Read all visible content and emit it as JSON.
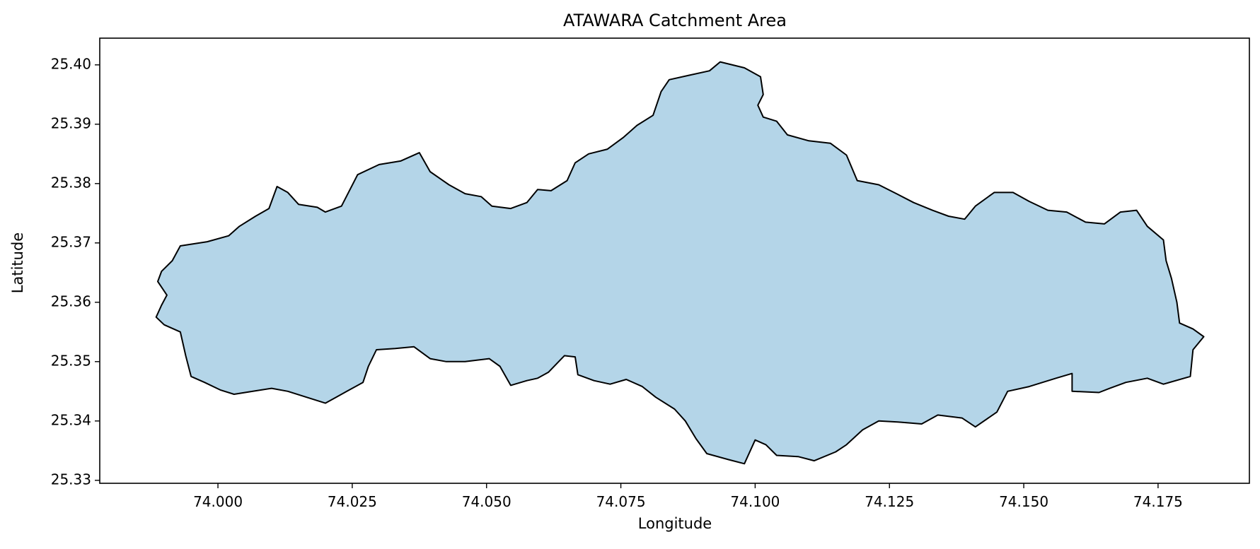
{
  "map": {
    "title": "ATAWARA Catchment Area",
    "xlabel": "Longitude",
    "ylabel": "Latitude",
    "fill_color": "#b4d5e8",
    "edge_color": "#000000",
    "xlim": [
      73.978,
      74.192
    ],
    "ylim": [
      25.3295,
      25.4045
    ],
    "x_ticks": [
      {
        "value": 74.0,
        "label": "74.000"
      },
      {
        "value": 74.025,
        "label": "74.025"
      },
      {
        "value": 74.05,
        "label": "74.050"
      },
      {
        "value": 74.075,
        "label": "74.075"
      },
      {
        "value": 74.1,
        "label": "74.100"
      },
      {
        "value": 74.125,
        "label": "74.125"
      },
      {
        "value": 74.15,
        "label": "74.150"
      },
      {
        "value": 74.175,
        "label": "74.175"
      }
    ],
    "y_ticks": [
      {
        "value": 25.33,
        "label": "25.33"
      },
      {
        "value": 25.34,
        "label": "25.34"
      },
      {
        "value": 25.35,
        "label": "25.35"
      },
      {
        "value": 25.36,
        "label": "25.36"
      },
      {
        "value": 25.37,
        "label": "25.37"
      },
      {
        "value": 25.38,
        "label": "25.38"
      },
      {
        "value": 25.39,
        "label": "25.39"
      },
      {
        "value": 25.4,
        "label": "25.40"
      }
    ],
    "boundary": [
      [
        73.9885,
        25.3575
      ],
      [
        73.9895,
        25.3595
      ],
      [
        73.9905,
        25.3612
      ],
      [
        73.9888,
        25.3635
      ],
      [
        73.9895,
        25.3652
      ],
      [
        73.9915,
        25.367
      ],
      [
        73.993,
        25.3695
      ],
      [
        73.998,
        25.3702
      ],
      [
        74.002,
        25.3712
      ],
      [
        74.004,
        25.3728
      ],
      [
        74.007,
        25.3745
      ],
      [
        74.0095,
        25.3758
      ],
      [
        74.011,
        25.3795
      ],
      [
        74.013,
        25.3785
      ],
      [
        74.015,
        25.3765
      ],
      [
        74.0185,
        25.376
      ],
      [
        74.02,
        25.3752
      ],
      [
        74.023,
        25.3762
      ],
      [
        74.026,
        25.3815
      ],
      [
        74.03,
        25.3832
      ],
      [
        74.034,
        25.3838
      ],
      [
        74.0375,
        25.3852
      ],
      [
        74.0395,
        25.382
      ],
      [
        74.043,
        25.3798
      ],
      [
        74.046,
        25.3783
      ],
      [
        74.049,
        25.3778
      ],
      [
        74.051,
        25.3762
      ],
      [
        74.0545,
        25.3758
      ],
      [
        74.0575,
        25.3768
      ],
      [
        74.0595,
        25.379
      ],
      [
        74.062,
        25.3788
      ],
      [
        74.065,
        25.3805
      ],
      [
        74.0665,
        25.3835
      ],
      [
        74.069,
        25.385
      ],
      [
        74.0725,
        25.3858
      ],
      [
        74.0755,
        25.3878
      ],
      [
        74.078,
        25.3898
      ],
      [
        74.081,
        25.3915
      ],
      [
        74.0825,
        25.3955
      ],
      [
        74.084,
        25.3975
      ],
      [
        74.0875,
        25.3982
      ],
      [
        74.0915,
        25.399
      ],
      [
        74.0935,
        25.4005
      ],
      [
        74.098,
        25.3995
      ],
      [
        74.101,
        25.398
      ],
      [
        74.1015,
        25.395
      ],
      [
        74.1005,
        25.3932
      ],
      [
        74.1015,
        25.3912
      ],
      [
        74.104,
        25.3905
      ],
      [
        74.106,
        25.3882
      ],
      [
        74.11,
        25.3872
      ],
      [
        74.114,
        25.3868
      ],
      [
        74.117,
        25.3848
      ],
      [
        74.119,
        25.3805
      ],
      [
        74.123,
        25.3798
      ],
      [
        74.1265,
        25.3782
      ],
      [
        74.1295,
        25.3768
      ],
      [
        74.133,
        25.3755
      ],
      [
        74.136,
        25.3745
      ],
      [
        74.139,
        25.374
      ],
      [
        74.141,
        25.3762
      ],
      [
        74.1445,
        25.3785
      ],
      [
        74.148,
        25.3785
      ],
      [
        74.151,
        25.377
      ],
      [
        74.1545,
        25.3755
      ],
      [
        74.158,
        25.3752
      ],
      [
        74.1615,
        25.3735
      ],
      [
        74.165,
        25.3732
      ],
      [
        74.168,
        25.3752
      ],
      [
        74.171,
        25.3755
      ],
      [
        74.173,
        25.3728
      ],
      [
        74.176,
        25.3705
      ],
      [
        74.1765,
        25.367
      ],
      [
        74.1775,
        25.364
      ],
      [
        74.1785,
        25.36
      ],
      [
        74.179,
        25.3565
      ],
      [
        74.1815,
        25.3555
      ],
      [
        74.1835,
        25.3542
      ],
      [
        74.1815,
        25.352
      ],
      [
        74.181,
        25.3475
      ],
      [
        74.176,
        25.3462
      ],
      [
        74.173,
        25.3472
      ],
      [
        74.169,
        25.3465
      ],
      [
        74.166,
        25.3455
      ],
      [
        74.164,
        25.3448
      ],
      [
        74.159,
        25.345
      ],
      [
        74.159,
        25.348
      ],
      [
        74.156,
        25.3472
      ],
      [
        74.151,
        25.3458
      ],
      [
        74.147,
        25.345
      ],
      [
        74.145,
        25.3415
      ],
      [
        74.141,
        25.339
      ],
      [
        74.1385,
        25.3405
      ],
      [
        74.134,
        25.341
      ],
      [
        74.131,
        25.3395
      ],
      [
        74.127,
        25.3398
      ],
      [
        74.123,
        25.34
      ],
      [
        74.12,
        25.3385
      ],
      [
        74.117,
        25.336
      ],
      [
        74.115,
        25.3348
      ],
      [
        74.111,
        25.3333
      ],
      [
        74.108,
        25.334
      ],
      [
        74.104,
        25.3342
      ],
      [
        74.102,
        25.336
      ],
      [
        74.1,
        25.3368
      ],
      [
        74.098,
        25.3328
      ],
      [
        74.095,
        25.3335
      ],
      [
        74.091,
        25.3345
      ],
      [
        74.089,
        25.337
      ],
      [
        74.087,
        25.34
      ],
      [
        74.085,
        25.342
      ],
      [
        74.0815,
        25.344
      ],
      [
        74.079,
        25.3458
      ],
      [
        74.076,
        25.347
      ],
      [
        74.073,
        25.3462
      ],
      [
        74.07,
        25.3468
      ],
      [
        74.067,
        25.3478
      ],
      [
        74.0665,
        25.3508
      ],
      [
        74.0645,
        25.351
      ],
      [
        74.0615,
        25.3482
      ],
      [
        74.0595,
        25.3472
      ],
      [
        74.0575,
        25.3468
      ],
      [
        74.0545,
        25.346
      ],
      [
        74.0525,
        25.3492
      ],
      [
        74.0505,
        25.3505
      ],
      [
        74.046,
        25.35
      ],
      [
        74.0425,
        25.35
      ],
      [
        74.0395,
        25.3505
      ],
      [
        74.0365,
        25.3525
      ],
      [
        74.033,
        25.3522
      ],
      [
        74.0295,
        25.352
      ],
      [
        74.028,
        25.3492
      ],
      [
        74.027,
        25.3465
      ],
      [
        74.024,
        25.345
      ],
      [
        74.022,
        25.344
      ],
      [
        74.02,
        25.343
      ],
      [
        74.0165,
        25.344
      ],
      [
        74.013,
        25.345
      ],
      [
        74.01,
        25.3455
      ],
      [
        74.0065,
        25.345
      ],
      [
        74.003,
        25.3445
      ],
      [
        74.0005,
        25.3452
      ],
      [
        73.9975,
        25.3465
      ],
      [
        73.995,
        25.3475
      ],
      [
        73.994,
        25.351
      ],
      [
        73.993,
        25.355
      ],
      [
        73.99,
        25.3562
      ]
    ]
  }
}
